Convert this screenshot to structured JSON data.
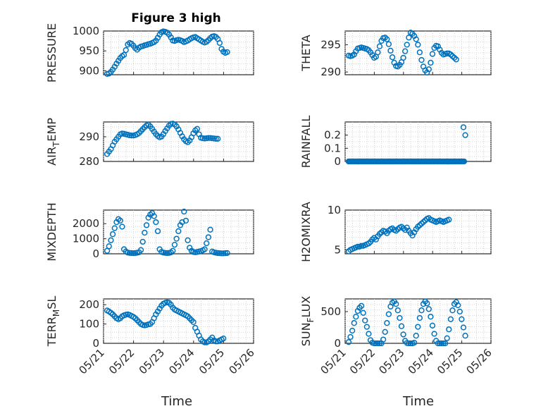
{
  "figure": {
    "title": "Figure 3 high",
    "xlabel": "Time",
    "marker_color": "#0072bd"
  },
  "chart_data": [
    {
      "type": "scatter",
      "name": "pressure",
      "ylabel": "PRESSURE",
      "xlim": [
        "05/21",
        "05/26"
      ],
      "ylim": [
        890,
        1000
      ],
      "yticks": [
        900,
        950,
        1000
      ],
      "xticks": [
        "05/21",
        "05/22",
        "05/23",
        "05/24",
        "05/25",
        "05/26"
      ],
      "x_start": "2019-05-21",
      "x_step_days": 0.0625,
      "values": [
        892,
        893,
        897,
        903,
        910,
        918,
        925,
        932,
        937,
        940,
        952,
        966,
        970,
        968,
        963,
        957,
        953,
        958,
        961,
        962,
        964,
        965,
        967,
        968,
        970,
        972,
        976,
        983,
        991,
        997,
        999,
        998,
        996,
        991,
        984,
        976,
        975,
        977,
        978,
        977,
        975,
        972,
        974,
        976,
        979,
        982,
        984,
        985,
        982,
        979,
        976,
        973,
        971,
        973,
        977,
        982,
        986,
        987,
        985,
        980,
        970,
        955,
        948,
        945,
        947,
        949,
        951,
        953,
        955,
        957,
        958,
        960,
        962,
        964
      ]
    },
    {
      "type": "scatter",
      "name": "theta",
      "ylabel": "THETA",
      "xlim": [
        "05/21",
        "05/26"
      ],
      "ylim": [
        289.5,
        297.5
      ],
      "yticks": [
        290,
        295
      ],
      "xticks": [
        "05/21",
        "05/22",
        "05/23",
        "05/24",
        "05/25",
        "05/26"
      ],
      "x_start": "2019-05-21",
      "x_step_days": 0.0625,
      "values": [
        293,
        292.9,
        293,
        293.2,
        293.8,
        294.3,
        294.4,
        294.5,
        294.4,
        294.3,
        294.2,
        294.0,
        293.6,
        293.1,
        292.6,
        292.8,
        293.6,
        294.7,
        295.7,
        296.2,
        296.3,
        296.0,
        295.1,
        293.9,
        292.7,
        291.7,
        291.1,
        291.0,
        291.3,
        291.8,
        292.6,
        293.8,
        295.0,
        296.3,
        297.2,
        297.0,
        296.6,
        296.0,
        295.0,
        293.6,
        292.2,
        291.0,
        290.3,
        289.9,
        290.5,
        291.7,
        293.3,
        294.4,
        294.8,
        294.7,
        294.1,
        293.5,
        293.2,
        293.3,
        293.4,
        293.4,
        293.2,
        292.9,
        292.6,
        292.3
      ]
    },
    {
      "type": "scatter",
      "name": "air_temp",
      "ylabel": "AIR_TEMP",
      "xlim": [
        "05/21",
        "05/26"
      ],
      "ylim": [
        280,
        296
      ],
      "yticks": [
        280,
        290
      ],
      "xticks": [
        "05/21",
        "05/22",
        "05/23",
        "05/24",
        "05/25",
        "05/26"
      ],
      "x_start": "2019-05-21",
      "x_step_days": 0.0625,
      "values": [
        283,
        284,
        285,
        286.5,
        288,
        289,
        290,
        291,
        291.3,
        291.2,
        291,
        290.8,
        290.6,
        290.5,
        290.5,
        290.7,
        291,
        291.5,
        292.3,
        293.1,
        293.9,
        294.6,
        294.9,
        294.2,
        293.2,
        292.1,
        291.1,
        290.3,
        289.8,
        290.1,
        291.1,
        292.3,
        293.4,
        294.5,
        295.2,
        295.3,
        295.0,
        294.2,
        293.0,
        291.6,
        290.2,
        289.0,
        288.2,
        287.8,
        288.5,
        289.8,
        291.4,
        292.6,
        293.2,
        291,
        289.6,
        289.4,
        289.3,
        289.4,
        289.5,
        289.5,
        289.4,
        289.3,
        289.2,
        289.2
      ]
    },
    {
      "type": "scatter",
      "name": "rainfall",
      "ylabel": "RAINFALL",
      "xlim": [
        "05/21",
        "05/26"
      ],
      "ylim": [
        0,
        0.3
      ],
      "yticks": [
        0,
        0.1,
        0.2
      ],
      "xticks": [
        "05/21",
        "05/22",
        "05/23",
        "05/24",
        "05/25",
        "05/26"
      ],
      "x_start": "2019-05-21",
      "x_step_days": 0.0625,
      "values": [
        0,
        0,
        0,
        0,
        0,
        0,
        0,
        0,
        0,
        0,
        0,
        0,
        0,
        0,
        0,
        0,
        0,
        0,
        0,
        0,
        0,
        0,
        0,
        0,
        0,
        0,
        0,
        0,
        0,
        0,
        0,
        0,
        0,
        0,
        0,
        0,
        0,
        0,
        0,
        0,
        0,
        0,
        0,
        0,
        0,
        0,
        0,
        0,
        0,
        0,
        0,
        0,
        0,
        0,
        0,
        0,
        0,
        0,
        0,
        0,
        0,
        0,
        0,
        0.26,
        0.2,
        0.2,
        0,
        0,
        0,
        0,
        0,
        0,
        0,
        0
      ],
      "extra_zero_density": 2
    },
    {
      "type": "scatter",
      "name": "mixdepth",
      "ylabel": "MIXDEPTH",
      "xlim": [
        "05/21",
        "05/26"
      ],
      "ylim": [
        0,
        2900
      ],
      "yticks": [
        0,
        1000,
        2000
      ],
      "xticks": [
        "05/21",
        "05/22",
        "05/23",
        "05/24",
        "05/25",
        "05/26"
      ],
      "x_start": "2019-05-21",
      "x_step_days": 0.0625,
      "values": [
        200,
        500,
        900,
        1300,
        1700,
        2100,
        2300,
        2200,
        1800,
        300,
        150,
        80,
        60,
        50,
        40,
        50,
        70,
        100,
        250,
        800,
        1400,
        1900,
        2400,
        2600,
        2700,
        2500,
        2100,
        1500,
        300,
        120,
        80,
        60,
        50,
        60,
        90,
        200,
        600,
        1000,
        1500,
        1900,
        2100,
        2800,
        2200,
        900,
        400,
        200,
        120,
        100,
        120,
        150,
        180,
        230,
        300,
        700,
        1100,
        1600,
        150,
        100,
        70,
        50,
        40,
        30,
        30,
        40,
        50,
        60,
        80,
        120,
        220
      ]
    },
    {
      "type": "scatter",
      "name": "h2omixra",
      "ylabel": "H2OMIXRA",
      "xlim": [
        "05/21",
        "05/26"
      ],
      "ylim": [
        4.5,
        10
      ],
      "yticks": [
        5,
        10
      ],
      "xticks": [
        "05/21",
        "05/22",
        "05/23",
        "05/24",
        "05/25",
        "05/26"
      ],
      "x_start": "2019-05-21",
      "x_step_days": 0.0625,
      "values": [
        4.8,
        5.0,
        5.1,
        5.2,
        5.3,
        5.4,
        5.4,
        5.5,
        5.5,
        5.6,
        5.7,
        5.8,
        6.0,
        6.3,
        6.5,
        6.3,
        6.7,
        7.0,
        7.2,
        7.4,
        7.3,
        7.1,
        7.4,
        7.6,
        7.7,
        7.5,
        7.4,
        7.6,
        7.8,
        7.9,
        7.7,
        7.5,
        7.8,
        7.4,
        7.1,
        6.8,
        7.2,
        7.6,
        7.9,
        8.1,
        8.3,
        8.5,
        8.7,
        8.9,
        9.0,
        8.8,
        8.7,
        8.6,
        8.5,
        8.6,
        8.7,
        8.6,
        8.5,
        8.6,
        8.7,
        8.8
      ]
    },
    {
      "type": "scatter",
      "name": "terr_msl",
      "ylabel": "TERR_MSL",
      "xlim": [
        "05/21",
        "05/26"
      ],
      "ylim": [
        0,
        230
      ],
      "yticks": [
        0,
        100,
        200
      ],
      "xticks": [
        "05/21",
        "05/22",
        "05/23",
        "05/24",
        "05/25",
        "05/26"
      ],
      "x_start": "2019-05-21",
      "x_step_days": 0.0625,
      "values": [
        170,
        165,
        158,
        150,
        140,
        130,
        125,
        130,
        140,
        145,
        148,
        150,
        147,
        142,
        137,
        130,
        120,
        110,
        100,
        95,
        93,
        95,
        98,
        100,
        110,
        130,
        150,
        165,
        180,
        195,
        205,
        210,
        212,
        210,
        200,
        185,
        175,
        170,
        165,
        160,
        155,
        150,
        145,
        140,
        130,
        120,
        110,
        80,
        60,
        40,
        20,
        10,
        5,
        5,
        10,
        20,
        30,
        15,
        10,
        10,
        15,
        20,
        25
      ]
    },
    {
      "type": "scatter",
      "name": "sun_flux",
      "ylabel": "SUN_FLUX",
      "xlim": [
        "05/21",
        "05/26"
      ],
      "ylim": [
        0,
        700
      ],
      "yticks": [
        0,
        500
      ],
      "xticks": [
        "05/21",
        "05/22",
        "05/23",
        "05/24",
        "05/25",
        "05/26"
      ],
      "x_start": "2019-05-21",
      "x_step_days": 0.0625,
      "values": [
        20,
        100,
        200,
        320,
        420,
        510,
        560,
        590,
        480,
        360,
        260,
        150,
        50,
        10,
        0,
        0,
        0,
        0,
        0,
        60,
        180,
        320,
        460,
        580,
        640,
        660,
        620,
        520,
        400,
        270,
        140,
        40,
        5,
        0,
        0,
        0,
        10,
        120,
        260,
        400,
        520,
        620,
        660,
        630,
        540,
        420,
        280,
        150,
        40,
        0,
        0,
        0,
        0,
        0,
        80,
        220,
        380,
        520,
        620,
        650,
        600,
        500,
        380,
        250,
        120,
        20,
        0,
        0,
        10,
        30,
        60,
        100
      ]
    }
  ]
}
